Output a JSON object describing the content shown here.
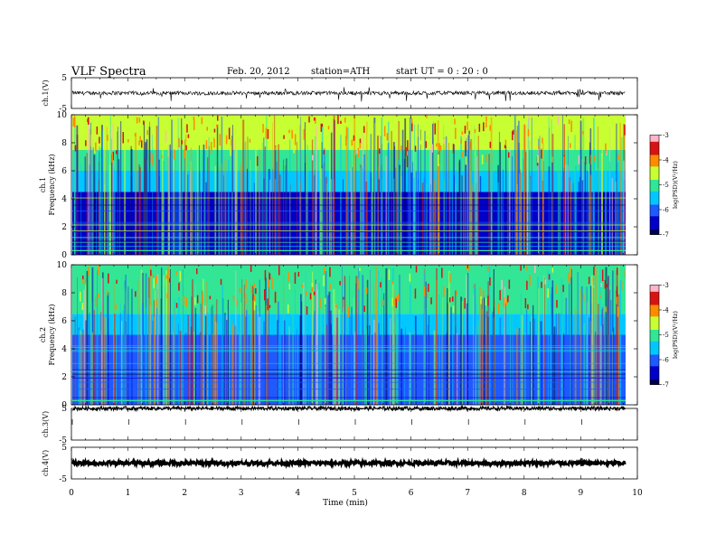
{
  "header": {
    "title": "VLF  Spectra",
    "date": "Feb. 20, 2012",
    "station": "station=ATH",
    "start": "start  UT  =    0  : 20 : 0"
  },
  "colors": {
    "spectrogram_scale": [
      "#000050",
      "#0000c8",
      "#1e5aff",
      "#00c8ff",
      "#32e696",
      "#c8ff32",
      "#ff8c00",
      "#d71414",
      "#ffb4c8"
    ]
  },
  "chart_data": [
    {
      "panel": "ch1-waveform",
      "type": "line",
      "ylabel": "ch.1(V)",
      "ylim": [
        -5,
        5
      ],
      "yticks": [
        "5",
        "-5"
      ],
      "baseline": 0,
      "description_of_signal": "noisy trace near 0 V with frequent negative spikes"
    },
    {
      "panel": "ch1-spectrogram",
      "type": "heatmap",
      "ylabel_lines": [
        "ch.1",
        "Frequency  (kHz)"
      ],
      "ylim": [
        0,
        10
      ],
      "yticks": [
        "0",
        "2",
        "4",
        "6",
        "8",
        "10"
      ],
      "colorbar": {
        "label": "log(PSD)(V²/Hz)",
        "range": [
          -7,
          -3
        ],
        "ticks": [
          "-3",
          "-4",
          "-5",
          "-6",
          "-7"
        ]
      },
      "bands": [
        {
          "from_khz": 0,
          "to_khz": 4.5,
          "level": -6.5
        },
        {
          "from_khz": 4.5,
          "to_khz": 6.0,
          "level": -5.7
        },
        {
          "from_khz": 6.0,
          "to_khz": 7.5,
          "level": -5.0
        },
        {
          "from_khz": 7.5,
          "to_khz": 10,
          "level": -4.4
        }
      ]
    },
    {
      "panel": "ch2-spectrogram",
      "type": "heatmap",
      "ylabel_lines": [
        "ch.2",
        "Frequency  (kHz)"
      ],
      "ylim": [
        0,
        10
      ],
      "yticks": [
        "0",
        "2",
        "4",
        "6",
        "8",
        "10"
      ],
      "colorbar": {
        "label": "log(PSD)(V²/Hz)",
        "range": [
          -7,
          -3
        ],
        "ticks": [
          "-3",
          "-4",
          "-5",
          "-6",
          "-7"
        ]
      },
      "bands": [
        {
          "from_khz": 0,
          "to_khz": 5.0,
          "level": -6.2
        },
        {
          "from_khz": 5.0,
          "to_khz": 6.5,
          "level": -5.6
        },
        {
          "from_khz": 6.5,
          "to_khz": 10,
          "level": -5.0
        }
      ]
    },
    {
      "panel": "ch3-waveform",
      "type": "line",
      "ylabel": "ch.3(V)",
      "ylim": [
        -5,
        5
      ],
      "yticks": [
        "5",
        "-5"
      ],
      "baseline": 5
    },
    {
      "panel": "ch4-waveform",
      "type": "line",
      "ylabel": "ch.4(V)",
      "ylim": [
        -5,
        5
      ],
      "yticks": [
        "5",
        "-5"
      ],
      "baseline": 0
    },
    {
      "panel": "time-axis",
      "xlabel": "Time  (min)",
      "xlim": [
        0,
        10
      ],
      "data_end_min": 9.8,
      "xticks": [
        "0",
        "1",
        "2",
        "3",
        "4",
        "5",
        "6",
        "7",
        "8",
        "9",
        "10"
      ]
    }
  ]
}
